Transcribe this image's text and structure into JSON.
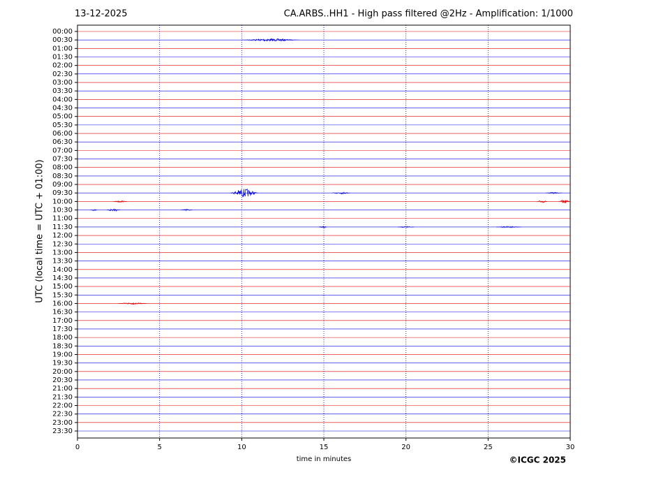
{
  "chart_data": {
    "type": "helicorder",
    "title_left": "13-12-2025",
    "title": "CA.ARBS..HH1 - High pass filtered @2Hz - Amplification: 1/1000",
    "xlabel": "time in minutes",
    "ylabel": "UTC (local time = UTC + 01:00)",
    "copyright": "©ICGC 2025",
    "categories": [
      "00:00",
      "00:30",
      "01:00",
      "01:30",
      "02:00",
      "02:30",
      "03:00",
      "03:30",
      "04:00",
      "04:30",
      "05:00",
      "05:30",
      "06:00",
      "06:30",
      "07:00",
      "07:30",
      "08:00",
      "08:30",
      "09:00",
      "09:30",
      "10:00",
      "10:30",
      "11:00",
      "11:30",
      "12:00",
      "12:30",
      "13:00",
      "13:30",
      "14:00",
      "14:30",
      "15:00",
      "15:30",
      "16:00",
      "16:30",
      "17:00",
      "17:30",
      "18:00",
      "18:30",
      "19:00",
      "19:30",
      "20:00",
      "20:30",
      "21:00",
      "21:30",
      "22:00",
      "22:30",
      "23:00",
      "23:30"
    ],
    "colors": [
      "#e00000",
      "#0000e0"
    ],
    "xlim": [
      0,
      30
    ],
    "xticks": [
      0,
      5,
      10,
      15,
      20,
      25,
      30
    ],
    "grid": true,
    "bursts": [
      {
        "row": 1,
        "start": 10,
        "end": 13.5,
        "amp": 0.15
      },
      {
        "row": 19,
        "start": 9.3,
        "end": 11,
        "amp": 0.5
      },
      {
        "row": 19,
        "start": 15.5,
        "end": 16.6,
        "amp": 0.12
      },
      {
        "row": 19,
        "start": 28.5,
        "end": 29.5,
        "amp": 0.08
      },
      {
        "row": 20,
        "start": 2.2,
        "end": 3,
        "amp": 0.1
      },
      {
        "row": 20,
        "start": 28,
        "end": 28.6,
        "amp": 0.15
      },
      {
        "row": 20,
        "start": 29.3,
        "end": 30,
        "amp": 0.2
      },
      {
        "row": 21,
        "start": 0.8,
        "end": 1.2,
        "amp": 0.08
      },
      {
        "row": 21,
        "start": 1.8,
        "end": 2.6,
        "amp": 0.2
      },
      {
        "row": 21,
        "start": 6.3,
        "end": 7,
        "amp": 0.1
      },
      {
        "row": 23,
        "start": 14.7,
        "end": 15.2,
        "amp": 0.12
      },
      {
        "row": 23,
        "start": 19.5,
        "end": 20.5,
        "amp": 0.08
      },
      {
        "row": 23,
        "start": 25.5,
        "end": 27,
        "amp": 0.08
      },
      {
        "row": 32,
        "start": 2.5,
        "end": 4.2,
        "amp": 0.1
      }
    ]
  }
}
